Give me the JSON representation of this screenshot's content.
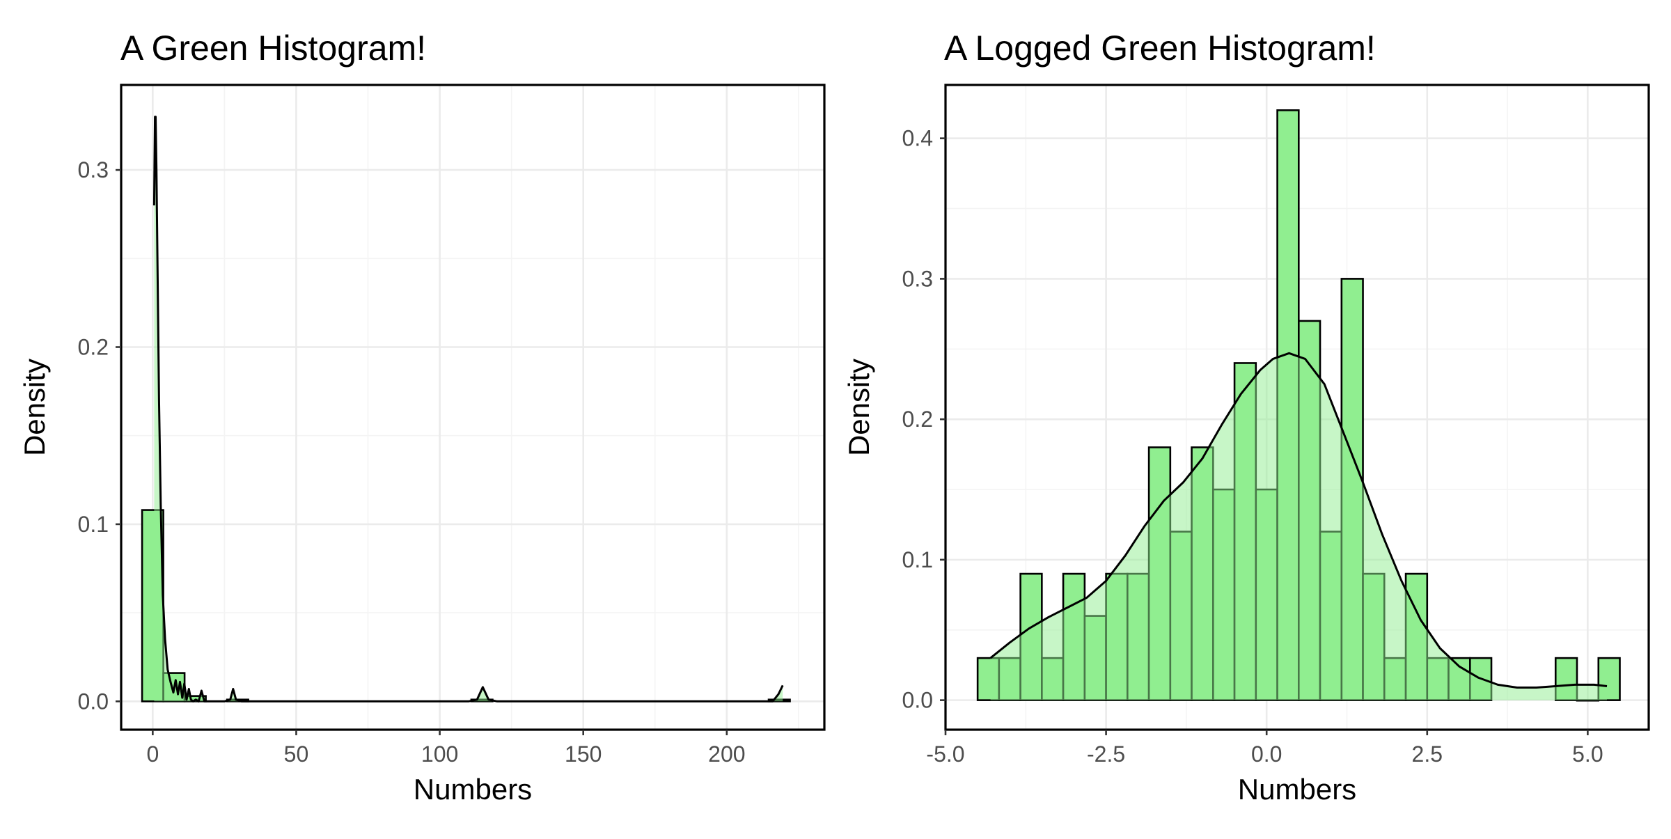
{
  "colors": {
    "bar_fill": "#90EE90",
    "bar_outline": "#000000",
    "density_line": "#000000",
    "grid": "#ebebeb",
    "background": "#ffffff"
  },
  "chart_data": [
    {
      "type": "bar",
      "title": "A Green Histogram!",
      "xlabel": "Numbers",
      "ylabel": "Density",
      "xlim": [
        -11,
        234
      ],
      "ylim": [
        -0.016,
        0.348
      ],
      "xticks": [
        0,
        50,
        100,
        150,
        200
      ],
      "xtick_labels": [
        "0",
        "50",
        "100",
        "150",
        "200"
      ],
      "yticks": [
        0.0,
        0.1,
        0.2,
        0.3
      ],
      "ytick_labels": [
        "0.0",
        "0.1",
        "0.2",
        "0.3"
      ],
      "bins": [
        {
          "x0": -3.7,
          "x1": 3.7,
          "density": 0.108
        },
        {
          "x0": 3.7,
          "x1": 11.1,
          "density": 0.016
        },
        {
          "x0": 11.1,
          "x1": 18.5,
          "density": 0.003
        },
        {
          "x0": 25.9,
          "x1": 33.3,
          "density": 0.001
        },
        {
          "x0": 111.0,
          "x1": 118.4,
          "density": 0.001
        },
        {
          "x0": 214.6,
          "x1": 222.0,
          "density": 0.001
        }
      ],
      "density": {
        "x": [
          0.5,
          0.8,
          1.0,
          1.3,
          1.7,
          2.2,
          2.8,
          3.5,
          4.3,
          5.2,
          6.2,
          7.2,
          8.0,
          8.8,
          9.5,
          10.3,
          11.0,
          11.8,
          12.6,
          13.3,
          14.0,
          15.0,
          16.0,
          17.0,
          18.0,
          19.0,
          20.0,
          25.0,
          27.0,
          28.0,
          29.0,
          31.0,
          40.0,
          110.0,
          113.0,
          115.0,
          117.0,
          120.0,
          200.0,
          216.0,
          218.0,
          219.5
        ],
        "y": [
          0.28,
          0.33,
          0.33,
          0.3,
          0.24,
          0.17,
          0.11,
          0.06,
          0.035,
          0.018,
          0.011,
          0.005,
          0.012,
          0.004,
          0.011,
          0.002,
          0.01,
          0.001,
          0.007,
          0.001,
          0.0,
          0.001,
          0.0,
          0.006,
          0.0,
          0.0,
          0.0,
          0.0,
          0.001,
          0.007,
          0.001,
          0.0,
          0.0,
          0.0,
          0.001,
          0.008,
          0.001,
          0.0,
          0.0,
          0.0,
          0.004,
          0.009
        ]
      }
    },
    {
      "type": "bar",
      "title": "A Logged Green Histogram!",
      "xlabel": "Numbers",
      "ylabel": "Density",
      "xlim": [
        -5.0,
        5.95
      ],
      "ylim": [
        -0.021,
        0.438
      ],
      "xticks": [
        -5.0,
        -2.5,
        0.0,
        2.5,
        5.0
      ],
      "xtick_labels": [
        "-5.0",
        "-2.5",
        "0.0",
        "2.5",
        "5.0"
      ],
      "yticks": [
        0.0,
        0.1,
        0.2,
        0.3,
        0.4
      ],
      "ytick_labels": [
        "0.0",
        "0.1",
        "0.2",
        "0.3",
        "0.4"
      ],
      "bins": [
        {
          "x0": -4.5,
          "x1": -4.167,
          "density": 0.03
        },
        {
          "x0": -4.167,
          "x1": -3.833,
          "density": 0.03
        },
        {
          "x0": -3.833,
          "x1": -3.5,
          "density": 0.09
        },
        {
          "x0": -3.5,
          "x1": -3.167,
          "density": 0.03
        },
        {
          "x0": -3.167,
          "x1": -2.833,
          "density": 0.09
        },
        {
          "x0": -2.833,
          "x1": -2.5,
          "density": 0.06
        },
        {
          "x0": -2.5,
          "x1": -2.167,
          "density": 0.09
        },
        {
          "x0": -2.167,
          "x1": -1.833,
          "density": 0.09
        },
        {
          "x0": -1.833,
          "x1": -1.5,
          "density": 0.18
        },
        {
          "x0": -1.5,
          "x1": -1.167,
          "density": 0.12
        },
        {
          "x0": -1.167,
          "x1": -0.833,
          "density": 0.18
        },
        {
          "x0": -0.833,
          "x1": -0.5,
          "density": 0.15
        },
        {
          "x0": -0.5,
          "x1": -0.167,
          "density": 0.24
        },
        {
          "x0": -0.167,
          "x1": 0.167,
          "density": 0.15
        },
        {
          "x0": 0.167,
          "x1": 0.5,
          "density": 0.42
        },
        {
          "x0": 0.5,
          "x1": 0.833,
          "density": 0.27
        },
        {
          "x0": 0.833,
          "x1": 1.167,
          "density": 0.12
        },
        {
          "x0": 1.167,
          "x1": 1.5,
          "density": 0.3
        },
        {
          "x0": 1.5,
          "x1": 1.833,
          "density": 0.09
        },
        {
          "x0": 1.833,
          "x1": 2.167,
          "density": 0.03
        },
        {
          "x0": 2.167,
          "x1": 2.5,
          "density": 0.09
        },
        {
          "x0": 2.5,
          "x1": 2.833,
          "density": 0.03
        },
        {
          "x0": 2.833,
          "x1": 3.167,
          "density": 0.03
        },
        {
          "x0": 3.167,
          "x1": 3.5,
          "density": 0.03
        },
        {
          "x0": 4.5,
          "x1": 4.833,
          "density": 0.03
        },
        {
          "x0": 4.833,
          "x1": 5.167,
          "density": 0.0
        },
        {
          "x0": 5.167,
          "x1": 5.5,
          "density": 0.03
        }
      ],
      "density": {
        "x": [
          -4.3,
          -4.0,
          -3.7,
          -3.4,
          -3.1,
          -2.8,
          -2.5,
          -2.2,
          -1.9,
          -1.6,
          -1.3,
          -1.0,
          -0.7,
          -0.4,
          -0.1,
          0.1,
          0.35,
          0.6,
          0.9,
          1.2,
          1.5,
          1.8,
          2.1,
          2.4,
          2.7,
          3.0,
          3.3,
          3.6,
          3.9,
          4.2,
          4.5,
          4.8,
          5.1,
          5.3
        ],
        "y": [
          0.03,
          0.041,
          0.051,
          0.059,
          0.066,
          0.073,
          0.085,
          0.103,
          0.124,
          0.142,
          0.155,
          0.172,
          0.196,
          0.218,
          0.235,
          0.243,
          0.247,
          0.243,
          0.225,
          0.19,
          0.155,
          0.118,
          0.085,
          0.057,
          0.037,
          0.024,
          0.016,
          0.011,
          0.009,
          0.009,
          0.01,
          0.011,
          0.011,
          0.01
        ]
      }
    }
  ]
}
